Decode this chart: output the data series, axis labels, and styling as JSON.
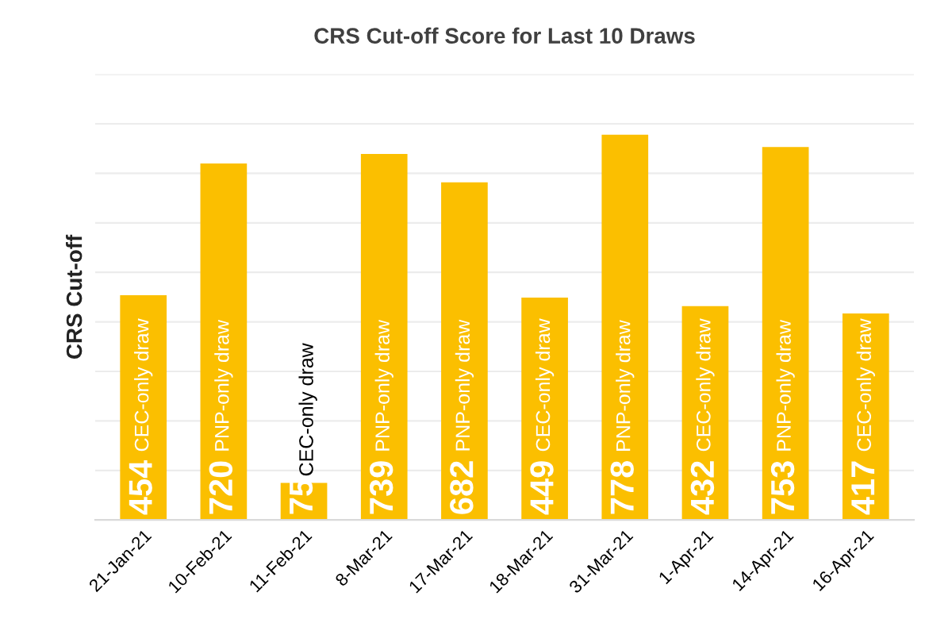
{
  "chart_data": {
    "type": "bar",
    "title": "CRS Cut-off Score for Last 10 Draws",
    "ylabel": "CRS Cut-off",
    "categories": [
      "21-Jan-21",
      "10-Feb-21",
      "11-Feb-21",
      "8-Mar-21",
      "17-Mar-21",
      "18-Mar-21",
      "31-Mar-21",
      "1-Apr-21",
      "14-Apr-21",
      "16-Apr-21"
    ],
    "values": [
      454,
      720,
      75,
      739,
      682,
      449,
      778,
      432,
      753,
      417
    ],
    "color": "#fbbf00",
    "ylim": [
      0,
      900
    ],
    "yticks": [
      {
        "value": 0,
        "label": null
      },
      {
        "value": 100,
        "label": null
      },
      {
        "value": 200,
        "label": null
      },
      {
        "value": 300,
        "label": null
      },
      {
        "value": 400,
        "label": null
      },
      {
        "value": 500,
        "label": null
      },
      {
        "value": 600,
        "label": null
      },
      {
        "value": 700,
        "label": null
      },
      {
        "value": 800,
        "label": null
      },
      {
        "value": 900,
        "label": null
      }
    ],
    "grid": "y",
    "data_labels": true,
    "tick_labels": "x",
    "annotations": [
      {
        "text": "CEC-only draw",
        "x": "21-Jan-21"
      },
      {
        "text": "PNP-only draw",
        "x": "10-Feb-21"
      },
      {
        "text": "CEC-only draw",
        "x": "11-Feb-21",
        "y": 75
      },
      {
        "text": "PNP-only draw",
        "x": "8-Mar-21"
      },
      {
        "text": "PNP-only draw",
        "x": "17-Mar-21"
      },
      {
        "text": "CEC-only draw",
        "x": "18-Mar-21"
      },
      {
        "text": "PNP-only draw",
        "x": "31-Mar-21"
      },
      {
        "text": "CEC-only draw",
        "x": "1-Apr-21"
      },
      {
        "text": "PNP-only draw",
        "x": "14-Apr-21"
      },
      {
        "text": "CEC-only draw",
        "x": "16-Apr-21"
      }
    ]
  }
}
